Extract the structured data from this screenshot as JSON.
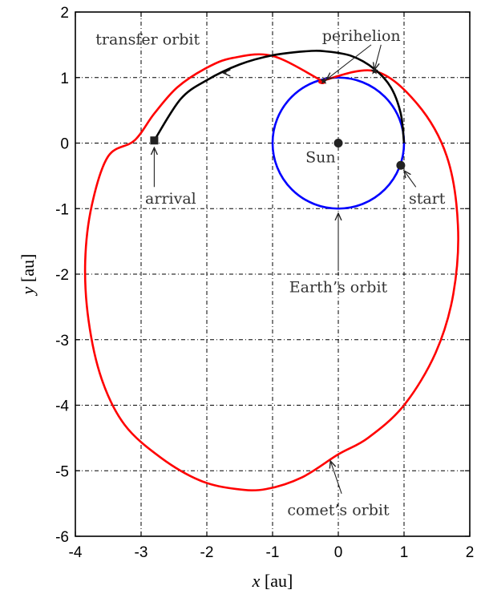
{
  "chart_data": {
    "type": "line",
    "xlabel": "x [au]",
    "ylabel": "y [au]",
    "xlim": [
      -4,
      2
    ],
    "ylim": [
      -6,
      2
    ],
    "xticks": [
      -4,
      -3,
      -2,
      -1,
      0,
      1,
      2
    ],
    "yticks": [
      -6,
      -5,
      -4,
      -3,
      -2,
      -1,
      0,
      1,
      2
    ],
    "grid": true,
    "colors": {
      "earth": "#0000ff",
      "comet": "#ff0000",
      "transfer": "#000000",
      "markers": "#222222"
    },
    "series": [
      {
        "key": "earth",
        "description": "circle",
        "x": [
          1.0,
          0.87,
          0.5,
          0.0,
          -0.5,
          -0.87,
          -1.0,
          -0.87,
          -0.5,
          0.0,
          0.5,
          0.87,
          1.0
        ],
        "y": [
          0.0,
          0.5,
          0.87,
          1.0,
          0.87,
          0.5,
          0.0,
          -0.5,
          -0.87,
          -1.0,
          -0.87,
          -0.5,
          0.0
        ]
      },
      {
        "key": "comet",
        "x": [
          -0.25,
          0.55,
          1.2,
          1.65,
          1.82,
          1.75,
          1.48,
          1.0,
          0.45,
          0.0,
          -0.55,
          -1.1,
          -1.55,
          -2.1,
          -2.7,
          -3.25,
          -3.6,
          -3.8,
          -3.85,
          -3.75,
          -3.5,
          -3.1,
          -2.8,
          -2.45,
          -2.0,
          -1.6,
          -1.0,
          -0.25
        ],
        "y": [
          0.95,
          1.1,
          0.6,
          -0.2,
          -1.25,
          -2.3,
          -3.2,
          -4.0,
          -4.5,
          -4.75,
          -5.1,
          -5.28,
          -5.28,
          -5.15,
          -4.8,
          -4.3,
          -3.6,
          -2.7,
          -1.8,
          -0.95,
          -0.2,
          0.04,
          0.45,
          0.85,
          1.15,
          1.3,
          1.33,
          0.95
        ]
      },
      {
        "key": "transfer",
        "x": [
          1.0,
          0.95,
          0.8,
          0.55,
          0.2,
          -0.2,
          -0.5,
          -1.0,
          -1.5,
          -2.0,
          -2.4,
          -2.8
        ],
        "y": [
          0.0,
          0.45,
          0.85,
          1.13,
          1.33,
          1.4,
          1.4,
          1.34,
          1.2,
          0.96,
          0.67,
          0.04
        ]
      }
    ],
    "points": [
      {
        "name": "Sun",
        "x": 0.0,
        "y": 0.0,
        "marker": "circle"
      },
      {
        "name": "start",
        "x": 0.95,
        "y": -0.34,
        "marker": "circle"
      },
      {
        "name": "arrival",
        "x": -2.8,
        "y": 0.04,
        "marker": "square"
      },
      {
        "name": "perihelion-1",
        "x": -0.22,
        "y": 0.95,
        "marker": "star"
      },
      {
        "name": "perihelion-2",
        "x": 0.55,
        "y": 1.1,
        "marker": "star"
      }
    ],
    "annotations": [
      {
        "text": "transfer orbit",
        "x": -2.9,
        "y": 1.58,
        "ax": -1.7,
        "ay": 1.07,
        "hx": -1.75,
        "hy": 1.07
      },
      {
        "text": "perihelion",
        "x": 0.35,
        "y": 1.63,
        "ax": 0.5,
        "ay": 1.5,
        "hx": -0.18,
        "hy": 0.97
      },
      {
        "text": "perihelion",
        "x": 0.35,
        "y": 1.63,
        "ax": 0.65,
        "ay": 1.5,
        "hx": 0.55,
        "hy": 1.12
      },
      {
        "text": "Sun",
        "x": -0.27,
        "y": -0.22,
        "ax": null,
        "ay": null,
        "hx": null,
        "hy": null
      },
      {
        "text": "start",
        "x": 1.35,
        "y": -0.85,
        "ax": 1.18,
        "ay": -0.67,
        "hx": 1.0,
        "hy": -0.42
      },
      {
        "text": "arrival",
        "x": -2.55,
        "y": -0.85,
        "ax": -2.8,
        "ay": -0.67,
        "hx": -2.8,
        "hy": -0.07
      },
      {
        "text": "Earth’s orbit",
        "x": 0.0,
        "y": -2.2,
        "ax": 0.0,
        "ay": -1.95,
        "hx": 0.0,
        "hy": -1.07
      },
      {
        "text": "comet’s orbit",
        "x": 0.0,
        "y": -5.6,
        "ax": 0.05,
        "ay": -5.35,
        "hx": -0.12,
        "hy": -4.85
      }
    ]
  }
}
